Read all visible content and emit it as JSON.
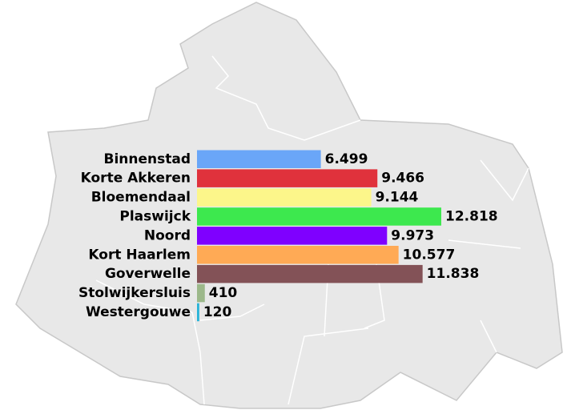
{
  "chart_data": {
    "type": "bar",
    "orientation": "horizontal",
    "categories": [
      "Binnenstad",
      "Korte Akkeren",
      "Bloemendaal",
      "Plaswijck",
      "Noord",
      "Kort Haarlem",
      "Goverwelle",
      "Stolwijkersluis",
      "Westergouwe"
    ],
    "values": [
      6499,
      9466,
      9144,
      12818,
      9973,
      10577,
      11838,
      410,
      120
    ],
    "value_labels": [
      "6.499",
      "9.466",
      "9.144",
      "12.818",
      "9.973",
      "10.577",
      "11.838",
      "410",
      "120"
    ],
    "colors": [
      "#6aa6f8",
      "#e0323c",
      "#fcf68a",
      "#3de84e",
      "#7f00ff",
      "#ffaa55",
      "#835257",
      "#9cb88a",
      "#2ab4d8"
    ]
  }
}
